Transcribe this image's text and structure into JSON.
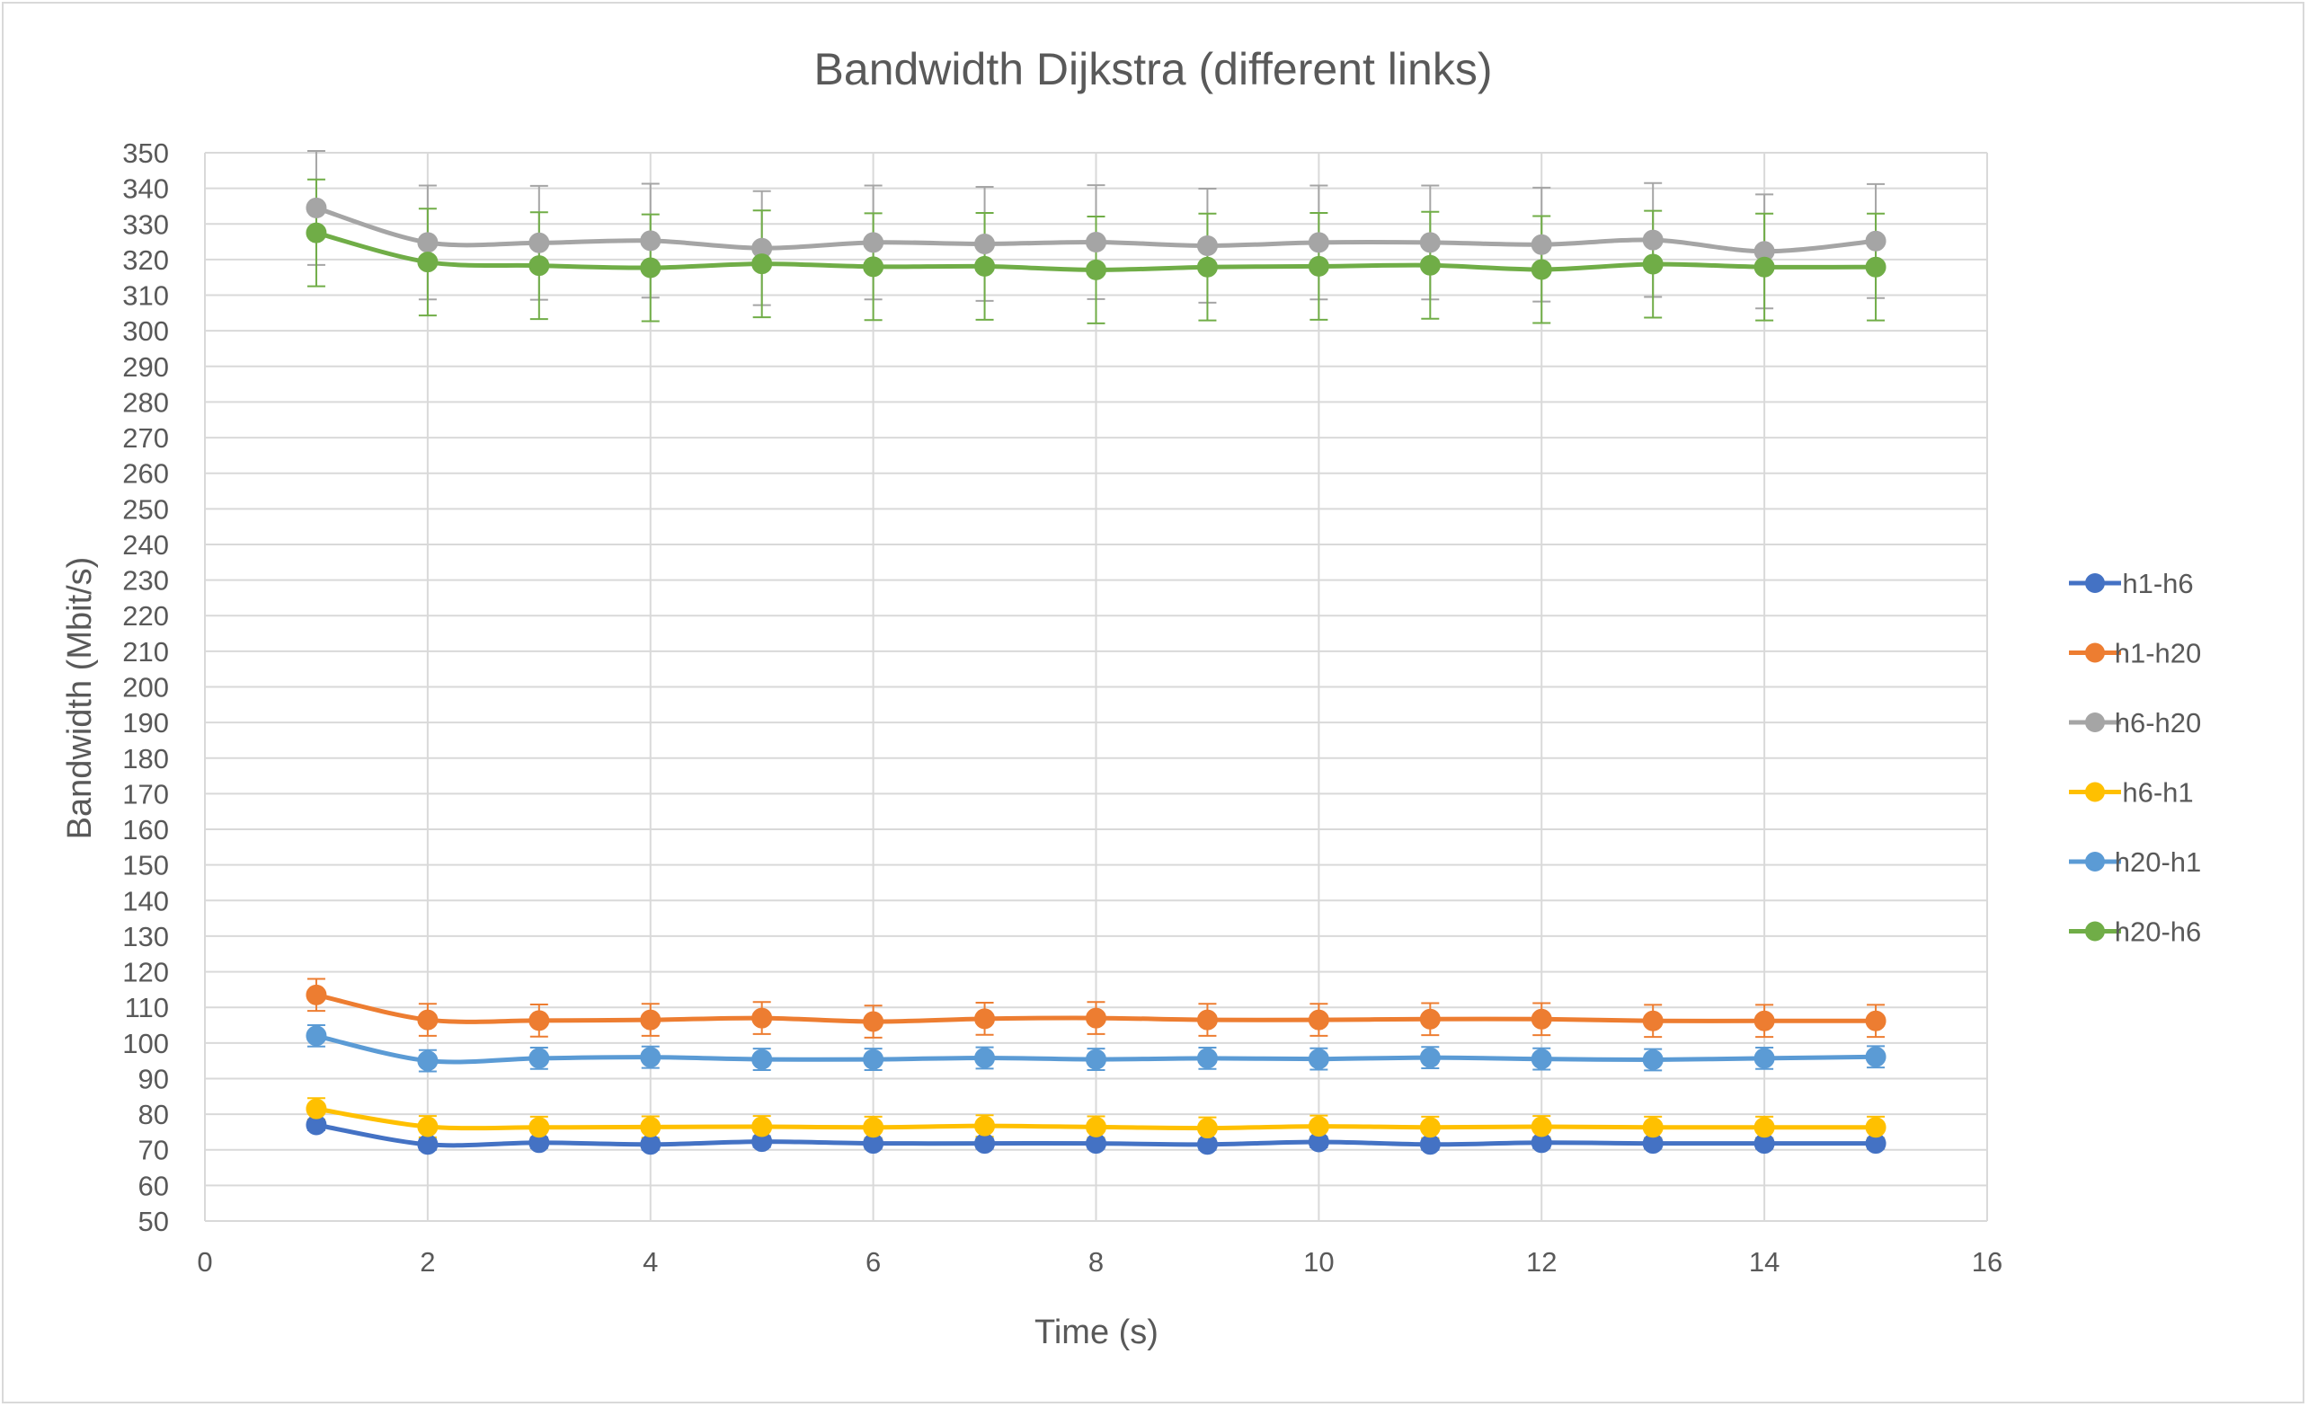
{
  "chart_data": {
    "type": "line",
    "title": "Bandwidth Dijkstra (different links)",
    "xlabel": "Time (s)",
    "ylabel": "Bandwidth (Mbit/s)",
    "xlim": [
      0,
      16
    ],
    "ylim": [
      50,
      350
    ],
    "x_ticks": [
      "0",
      "2",
      "4",
      "6",
      "8",
      "10",
      "12",
      "14",
      "16"
    ],
    "y_ticks": [
      "50",
      "60",
      "70",
      "80",
      "90",
      "100",
      "110",
      "120",
      "130",
      "140",
      "150",
      "160",
      "170",
      "180",
      "190",
      "200",
      "210",
      "220",
      "230",
      "240",
      "250",
      "260",
      "270",
      "280",
      "290",
      "300",
      "310",
      "320",
      "330",
      "340",
      "350"
    ],
    "grid": true,
    "legend_position": "right",
    "error_bars": true,
    "x": [
      1,
      2,
      3,
      4,
      5,
      6,
      7,
      8,
      9,
      10,
      11,
      12,
      13,
      14,
      15
    ],
    "series": [
      {
        "name": "h1-h6",
        "color": "#4472c4",
        "values": [
          77,
          71.5,
          72,
          71.5,
          72.3,
          71.8,
          71.8,
          71.8,
          71.5,
          72.2,
          71.5,
          72,
          71.8,
          71.8,
          71.8
        ],
        "errors": [
          1.5,
          1.5,
          1.5,
          1.5,
          1.5,
          1.5,
          1.5,
          1.5,
          1.5,
          1.5,
          1.5,
          1.5,
          1.5,
          1.5,
          1.5
        ]
      },
      {
        "name": "h1-h20",
        "color": "#ed7d31",
        "values": [
          113.5,
          106.5,
          106.3,
          106.5,
          107,
          106,
          106.8,
          107,
          106.5,
          106.5,
          106.7,
          106.7,
          106.2,
          106.2,
          106.2
        ],
        "errors": [
          4.5,
          4.5,
          4.5,
          4.5,
          4.5,
          4.5,
          4.5,
          4.5,
          4.5,
          4.5,
          4.5,
          4.5,
          4.5,
          4.5,
          4.5
        ]
      },
      {
        "name": "h6-h20",
        "color": "#a5a5a5",
        "values": [
          334.5,
          324.8,
          324.7,
          325.3,
          323.2,
          324.8,
          324.4,
          324.9,
          323.9,
          324.8,
          324.8,
          324.2,
          325.5,
          322.3,
          325.2
        ],
        "errors": [
          16,
          16,
          16,
          16,
          16,
          16,
          16,
          16,
          16,
          16,
          16,
          16,
          16,
          16,
          16
        ]
      },
      {
        "name": "h6-h1",
        "color": "#ffc000",
        "values": [
          81.5,
          76.5,
          76.3,
          76.4,
          76.5,
          76.3,
          76.7,
          76.4,
          76.1,
          76.6,
          76.3,
          76.5,
          76.3,
          76.3,
          76.3
        ],
        "errors": [
          3,
          3,
          3,
          3,
          3,
          3,
          3,
          3,
          3,
          3,
          3,
          3,
          3,
          3,
          3
        ]
      },
      {
        "name": "h20-h1",
        "color": "#5b9bd5",
        "values": [
          102,
          95,
          95.7,
          96,
          95.4,
          95.4,
          95.8,
          95.4,
          95.7,
          95.5,
          95.9,
          95.5,
          95.3,
          95.7,
          96.1
        ],
        "errors": [
          3,
          3,
          3,
          3,
          3,
          3,
          3,
          3,
          3,
          3,
          3,
          3,
          3,
          3,
          3
        ]
      },
      {
        "name": "h20-h6",
        "color": "#70ad47",
        "values": [
          327.5,
          319.3,
          318.3,
          317.7,
          318.8,
          318,
          318.1,
          317.1,
          317.9,
          318.1,
          318.4,
          317.2,
          318.7,
          317.9,
          317.9
        ],
        "errors": [
          15,
          15,
          15,
          15,
          15,
          15,
          15,
          15,
          15,
          15,
          15,
          15,
          15,
          15,
          15
        ]
      }
    ]
  }
}
